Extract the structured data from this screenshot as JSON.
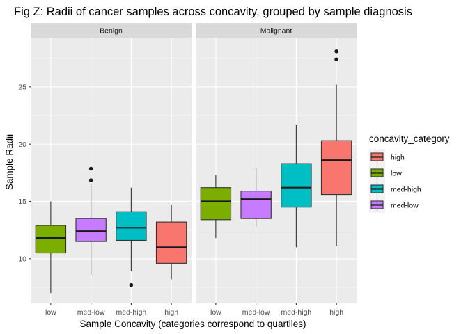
{
  "chart_data": {
    "type": "boxplot",
    "title": "Fig Z: Radii of cancer samples across concavity, grouped by sample diagnosis",
    "xlabel": "Sample Concavity (categories correspond to quartiles)",
    "ylabel": "Sample Radii",
    "categories": [
      "low",
      "med-low",
      "med-high",
      "high"
    ],
    "ylim": [
      6.1,
      29.3
    ],
    "yticks": [
      10,
      15,
      20,
      25
    ],
    "grid": true,
    "legend": {
      "title": "concavity_category",
      "placement": "right",
      "entries": [
        {
          "label": "high",
          "color": "#F8766D"
        },
        {
          "label": "low",
          "color": "#7CAE00"
        },
        {
          "label": "med-high",
          "color": "#00BFC4"
        },
        {
          "label": "med-low",
          "color": "#C77CFF"
        }
      ]
    },
    "colors": {
      "low": "#7CAE00",
      "med-low": "#C77CFF",
      "med-high": "#00BFC4",
      "high": "#F8766D"
    },
    "facets": [
      {
        "label": "Benign",
        "boxes": [
          {
            "category": "low",
            "min": 7.0,
            "q1": 10.5,
            "median": 11.8,
            "q3": 12.9,
            "max": 15.0,
            "outliers": []
          },
          {
            "category": "med-low",
            "min": 8.6,
            "q1": 11.5,
            "median": 12.4,
            "q3": 13.5,
            "max": 16.5,
            "outliers": [
              16.85,
              17.85
            ]
          },
          {
            "category": "med-high",
            "min": 8.9,
            "q1": 11.6,
            "median": 12.7,
            "q3": 14.1,
            "max": 16.2,
            "outliers": [
              7.7
            ]
          },
          {
            "category": "high",
            "min": 8.2,
            "q1": 9.6,
            "median": 11.0,
            "q3": 13.2,
            "max": 14.7,
            "outliers": []
          }
        ]
      },
      {
        "label": "Malignant",
        "boxes": [
          {
            "category": "low",
            "min": 11.8,
            "q1": 13.4,
            "median": 15.0,
            "q3": 16.2,
            "max": 17.3,
            "outliers": []
          },
          {
            "category": "med-low",
            "min": 12.8,
            "q1": 13.5,
            "median": 15.2,
            "q3": 15.9,
            "max": 17.9,
            "outliers": []
          },
          {
            "category": "med-high",
            "min": 11.0,
            "q1": 14.5,
            "median": 16.2,
            "q3": 18.3,
            "max": 21.7,
            "outliers": []
          },
          {
            "category": "high",
            "min": 11.1,
            "q1": 15.6,
            "median": 18.6,
            "q3": 20.3,
            "max": 25.2,
            "outliers": [
              27.4,
              28.1
            ]
          }
        ]
      }
    ]
  }
}
